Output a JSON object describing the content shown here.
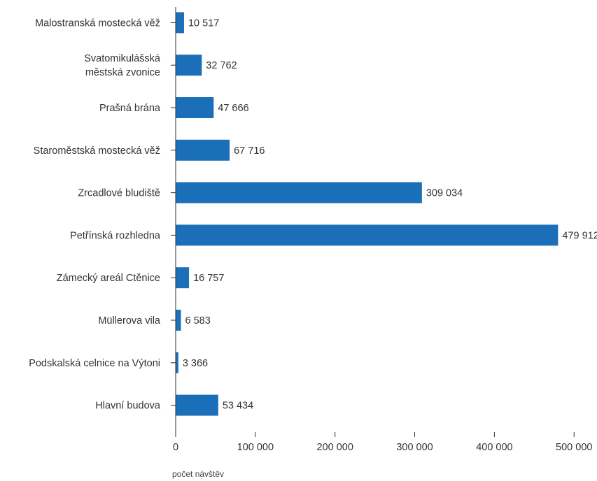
{
  "chart_data": {
    "type": "bar",
    "orientation": "horizontal",
    "categories": [
      [
        "Malostranská mostecká věž"
      ],
      [
        "Svatomikulášská",
        "městská zvonice"
      ],
      [
        "Prašná brána"
      ],
      [
        "Staroměstská mostecká věž"
      ],
      [
        "Zrcadlové bludiště"
      ],
      [
        "Petřínská rozhledna"
      ],
      [
        "Zámecký areál Ctěnice"
      ],
      [
        "Müllerova vila"
      ],
      [
        "Podskalská celnice na Výtoni"
      ],
      [
        "Hlavní budova"
      ]
    ],
    "values": [
      10517,
      32762,
      47666,
      67716,
      309034,
      479912,
      16757,
      6583,
      3366,
      53434
    ],
    "value_labels": [
      "10 517",
      "32 762",
      "47 666",
      "67 716",
      "309 034",
      "479 912",
      "16 757",
      "6 583",
      "3 366",
      "53 434"
    ],
    "xlim": [
      0,
      500000
    ],
    "xticks": [
      0,
      100000,
      200000,
      300000,
      400000,
      500000
    ],
    "xtick_labels": [
      "0",
      "100 000",
      "200 000",
      "300 000",
      "400 000",
      "500 000"
    ],
    "xlabel": "počet návštěv",
    "ylabel": "",
    "title": "",
    "grid": false,
    "bar_color": "#1a6fb8"
  }
}
